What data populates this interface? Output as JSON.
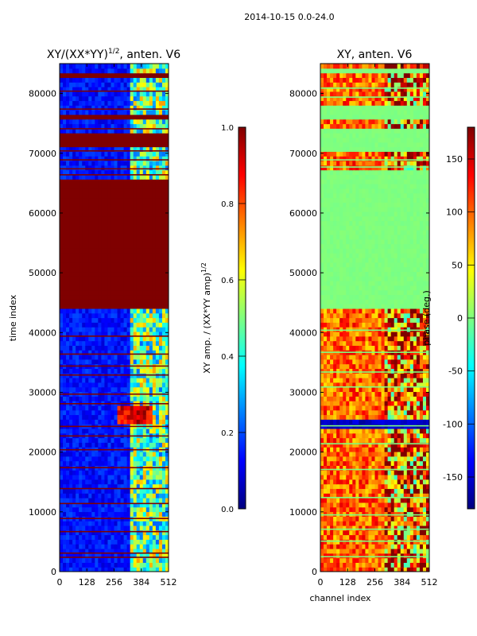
{
  "suptitle": "2014-10-15 0.0-24.0",
  "colormap": {
    "name": "jet",
    "stops": [
      "#00007f",
      "#0000ff",
      "#007fff",
      "#00ffff",
      "#7fff7f",
      "#ffff00",
      "#ff7f00",
      "#ff0000",
      "#7f0000"
    ]
  },
  "chart_data": [
    {
      "type": "heatmap",
      "title": "XY/(XX*YY)",
      "title_exponent": "1/2",
      "title_suffix": ", anten. V6",
      "xlabel": "",
      "ylabel": "time index",
      "x_ticks": [
        "0",
        "128",
        "256",
        "384",
        "512"
      ],
      "y_ticks": [
        "0",
        "10000",
        "20000",
        "30000",
        "40000",
        "50000",
        "60000",
        "70000",
        "80000"
      ],
      "xlim": [
        0,
        512
      ],
      "ylim": [
        0,
        85000
      ],
      "colorbar": {
        "label": "XY amp. / (XX*YY amp)",
        "label_exponent": "1/2",
        "ticks": [
          "0.0",
          "0.2",
          "0.4",
          "0.6",
          "0.8",
          "1.0"
        ],
        "range": [
          0,
          1
        ]
      },
      "saturated_bands": [
        [
          43500,
          65500
        ],
        [
          71000,
          73000
        ],
        [
          75000,
          76000
        ],
        [
          82500,
          83000
        ]
      ],
      "flag_lines": [
        2500,
        3200,
        6800,
        9000,
        11500,
        14000,
        17500,
        20500,
        22800,
        24400,
        28200,
        29800,
        33000,
        34500,
        36500,
        39500,
        66500,
        67500,
        69000,
        70500,
        74200,
        77500,
        80500
      ],
      "background_value": 0.14,
      "active_channels": [
        330,
        512
      ],
      "active_value": 0.42
    },
    {
      "type": "heatmap",
      "title": "XY, anten. V6",
      "xlabel": "channel index",
      "ylabel": "",
      "x_ticks": [
        "0",
        "128",
        "256",
        "384",
        "512"
      ],
      "y_ticks": [
        "0",
        "10000",
        "20000",
        "30000",
        "40000",
        "50000",
        "60000",
        "70000",
        "80000"
      ],
      "xlim": [
        0,
        512
      ],
      "ylim": [
        0,
        85000
      ],
      "colorbar": {
        "label": "phase (deg.)",
        "ticks": [
          "-150",
          "-100",
          "-50",
          "0",
          "50",
          "100",
          "150"
        ],
        "range": [
          -180,
          180
        ]
      },
      "flat_bands": [
        [
          43500,
          66500
        ],
        [
          70000,
          73500
        ],
        [
          75500,
          78000
        ],
        [
          83000,
          84000
        ]
      ],
      "flat_value": 0,
      "flag_lines": [
        2600,
        5200,
        7200,
        9600,
        12500,
        17200,
        21500,
        24500,
        31000,
        33500,
        36800,
        40500,
        67800,
        69000,
        79500,
        81000
      ],
      "background_value": 100,
      "noisy_channels": [
        300,
        512
      ]
    }
  ]
}
